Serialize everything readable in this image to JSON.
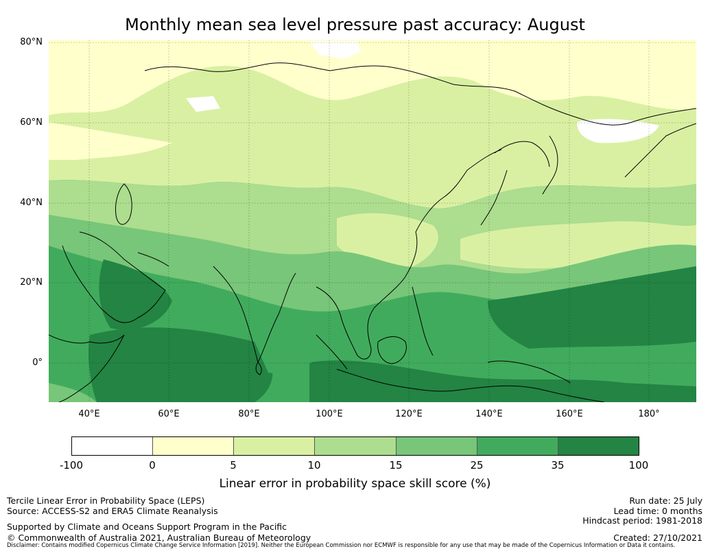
{
  "title": "Monthly mean sea level pressure past accuracy: August",
  "map": {
    "region": "Asia and Western Pacific",
    "lat_labels": [
      "80°N",
      "60°N",
      "40°N",
      "20°N",
      "0°"
    ],
    "lon_labels": [
      "40°E",
      "60°E",
      "80°E",
      "100°E",
      "120°E",
      "140°E",
      "160°E",
      "180°"
    ]
  },
  "colorbar": {
    "colors": [
      "#ffffff",
      "#ffffcc",
      "#d9f0a3",
      "#addd8e",
      "#78c679",
      "#41ab5d",
      "#238443"
    ],
    "ticks": [
      "-100",
      "0",
      "5",
      "10",
      "15",
      "25",
      "35",
      "100"
    ],
    "label": "Linear error in probability space skill score (%)"
  },
  "footer": {
    "left": {
      "line1": "Tercile Linear Error in Probability Space (LEPS)",
      "line2": "Source: ACCESS-S2 and ERA5 Climate Reanalysis",
      "line3": "Supported by Climate and Oceans Support Program in the Pacific",
      "line4": "© Commonwealth of Australia 2021, Australian Bureau of Meteorology"
    },
    "right": {
      "run_date": "Run date: 25 July",
      "lead_time": "Lead time: 0 months",
      "hindcast": "Hindcast period: 1981-2018",
      "created": "Created: 27/10/2021"
    },
    "disclaimer": "Disclaimer: Contains modified Copernicus Climate Change Service Information [2019]. Neither the European Commission nor ECMWF is responsible for any use that may be made of the Copernicus Information or Data it contains."
  }
}
